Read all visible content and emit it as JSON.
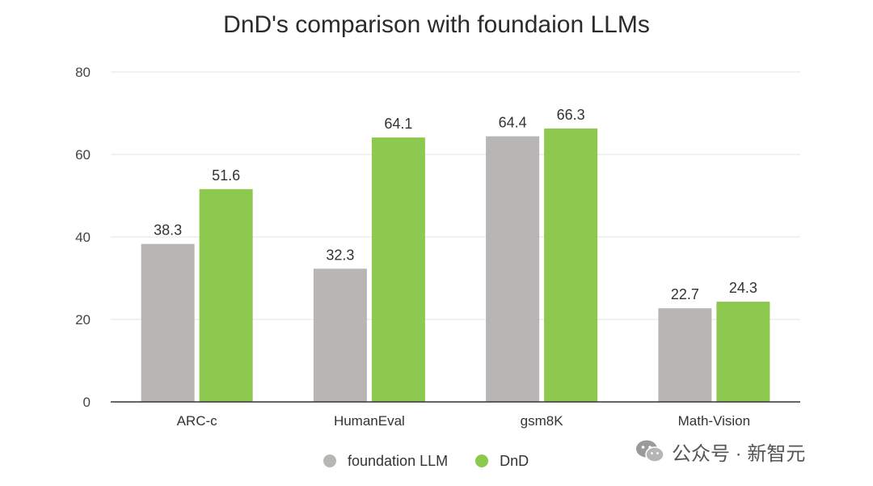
{
  "title": "DnD's comparison with foundaion LLMs",
  "colors": {
    "foundation": "#b7b6b4",
    "dnd": "#8dc84f",
    "grid": "#e3e3e3",
    "axis": "#333333"
  },
  "watermark": {
    "text": "公众号 · 新智元",
    "icon": "wechat-icon"
  },
  "chart_data": {
    "type": "bar",
    "categories": [
      "ARC-c",
      "HumanEval",
      "gsm8K",
      "Math-Vision"
    ],
    "series": [
      {
        "name": "foundation LLM",
        "values": [
          38.3,
          32.3,
          64.4,
          22.7
        ]
      },
      {
        "name": "DnD",
        "values": [
          51.6,
          64.1,
          66.3,
          24.3
        ]
      }
    ],
    "yticks": [
      "0",
      "20",
      "40",
      "60",
      "80"
    ],
    "ylim": [
      0,
      80
    ],
    "grid": true,
    "legend": "bottom"
  }
}
